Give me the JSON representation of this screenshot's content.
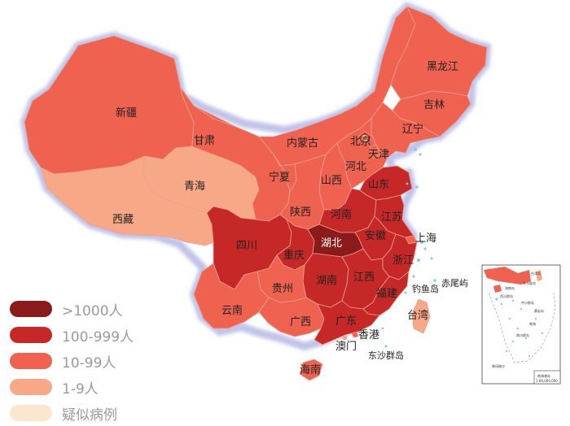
{
  "colors": {
    "gt1000": "#8B1A1A",
    "c100_999": "#C62828",
    "c10_99": "#F06250",
    "c1_9": "#F7A987",
    "suspected": "#FDE6CF",
    "border": "#e9a18f"
  },
  "legend": [
    {
      "label": ">1000人",
      "color": "#8B1A1A"
    },
    {
      "label": "100-999人",
      "color": "#C62828"
    },
    {
      "label": "10-99人",
      "color": "#F06250"
    },
    {
      "label": "1-9人",
      "color": "#F7A987"
    },
    {
      "label": "疑似病例",
      "color": "#FDE6CF"
    }
  ],
  "provinces": {
    "heilongjiang": {
      "label": "黑龙江",
      "level": "10-99"
    },
    "jilin": {
      "label": "吉林",
      "level": "10-99"
    },
    "liaoning": {
      "label": "辽宁",
      "level": "10-99"
    },
    "xinjiang": {
      "label": "新疆",
      "level": "10-99"
    },
    "gansu": {
      "label": "甘肃",
      "level": "10-99"
    },
    "neimenggu": {
      "label": "内蒙古",
      "level": "10-99"
    },
    "beijing": {
      "label": "北京",
      "level": "100-999"
    },
    "tianjin": {
      "label": "天津",
      "level": "10-99"
    },
    "hebei": {
      "label": "河北",
      "level": "10-99"
    },
    "qinghai": {
      "label": "青海",
      "level": "1-9"
    },
    "ningxia": {
      "label": "宁夏",
      "level": "10-99"
    },
    "shanxi": {
      "label": "山西",
      "level": "10-99"
    },
    "shandong": {
      "label": "山东",
      "level": "100-999"
    },
    "xizang": {
      "label": "西藏",
      "level": "1-9"
    },
    "shaanxi": {
      "label": "陕西",
      "level": "10-99"
    },
    "henan": {
      "label": "河南",
      "level": "100-999"
    },
    "jiangsu": {
      "label": "江苏",
      "level": "100-999"
    },
    "sichuan": {
      "label": "四川",
      "level": "100-999"
    },
    "hubei": {
      "label": "湖北",
      "level": ">1000"
    },
    "anhui": {
      "label": "安徽",
      "level": "100-999"
    },
    "shanghai": {
      "label": "上海",
      "level": "10-99"
    },
    "chongqing": {
      "label": "重庆",
      "level": "100-999"
    },
    "zhejiang": {
      "label": "浙江",
      "level": "100-999"
    },
    "hunan": {
      "label": "湖南",
      "level": "100-999"
    },
    "jiangxi": {
      "label": "江西",
      "level": "100-999"
    },
    "guizhou": {
      "label": "贵州",
      "level": "10-99"
    },
    "yunnan": {
      "label": "云南",
      "level": "10-99"
    },
    "fujian": {
      "label": "福建",
      "level": "100-999"
    },
    "guangxi": {
      "label": "广西",
      "level": "10-99"
    },
    "guangdong": {
      "label": "广东",
      "level": "100-999"
    },
    "taiwan": {
      "label": "台湾",
      "level": "1-9"
    },
    "hongkong": {
      "label": "香港",
      "level": "10-99"
    },
    "macau": {
      "label": "澳门",
      "level": "1-9"
    },
    "hainan": {
      "label": "海南",
      "level": "10-99"
    }
  },
  "islands": {
    "diaoyu": "钓鱼岛",
    "chiwei": "赤尾屿",
    "dongsha": "东沙群岛"
  },
  "inset": {
    "title": "南海诸岛",
    "scale": "1:66,000,000",
    "labels": [
      "台湾岛",
      "海南岛",
      "东沙群岛",
      "西沙群岛",
      "中沙群岛",
      "黄岩岛",
      "南沙群岛",
      "曾母暗沙",
      "南海"
    ]
  }
}
